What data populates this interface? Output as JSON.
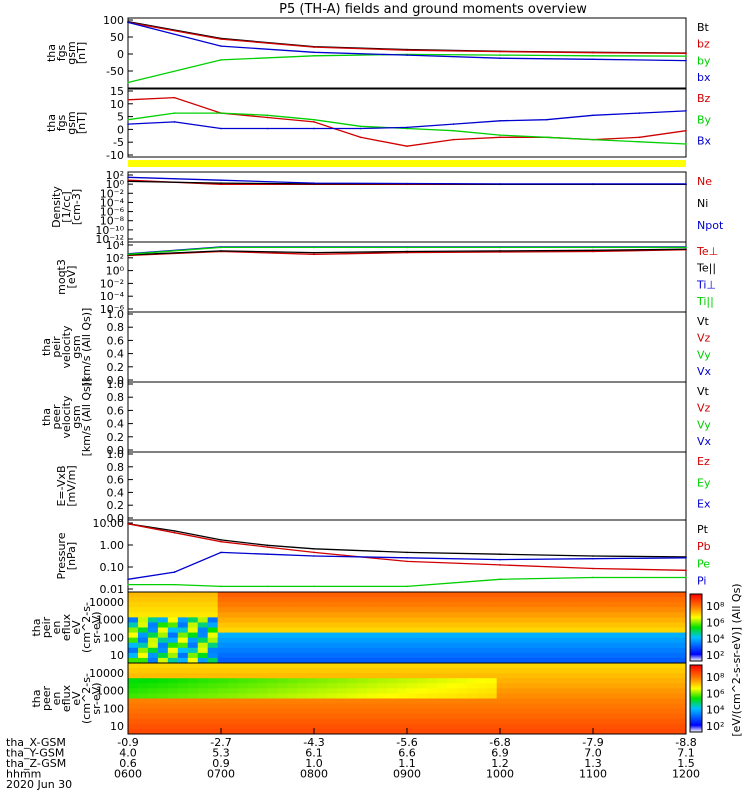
{
  "title": "P5 (TH-A) fields and ground moments overview",
  "colors": {
    "black": "#000000",
    "red": "#d00000",
    "green": "#00d000",
    "blue": "#0000d0",
    "yellow": "#ffff00"
  },
  "chart_data": [
    {
      "type": "line",
      "id": "fgs",
      "ylabel": [
        "tha",
        "fgs",
        "gsm",
        "[nT]"
      ],
      "yticks": [
        "100",
        "50",
        "0",
        "-50"
      ],
      "ylim": [
        -85,
        105
      ],
      "scale": "linear",
      "legend": [
        {
          "name": "Bt",
          "color": "black"
        },
        {
          "name": "bz",
          "color": "red"
        },
        {
          "name": "by",
          "color": "green"
        },
        {
          "name": "bx",
          "color": "blue"
        }
      ],
      "x": [
        0,
        1,
        2,
        3,
        4,
        5,
        6
      ],
      "series": [
        {
          "name": "Bt",
          "color": "black",
          "values": [
            100,
            52,
            28,
            20,
            15,
            12,
            10
          ]
        },
        {
          "name": "bz",
          "color": "red",
          "values": [
            98,
            50,
            27,
            18,
            14,
            11,
            9
          ]
        },
        {
          "name": "by",
          "color": "green",
          "values": [
            -75,
            -10,
            2,
            6,
            4,
            2,
            1
          ]
        },
        {
          "name": "bx",
          "color": "blue",
          "values": [
            98,
            30,
            12,
            4,
            -5,
            -8,
            -12
          ]
        }
      ]
    },
    {
      "type": "line",
      "id": "fgs_dsl",
      "ylabel": [
        "tha",
        "fgs",
        "gsm",
        "[nT]"
      ],
      "yticks": [
        "15",
        "10",
        "5",
        "0",
        "-5",
        "-10"
      ],
      "ylim": [
        -13,
        16
      ],
      "scale": "linear",
      "legend": [
        {
          "name": "Bz",
          "color": "red"
        },
        {
          "name": "By",
          "color": "green"
        },
        {
          "name": "Bx",
          "color": "blue"
        }
      ],
      "x": [
        0,
        0.5,
        1,
        1.5,
        2,
        2.5,
        3,
        3.5,
        4,
        4.5,
        5,
        5.5,
        6
      ],
      "series": [
        {
          "name": "Bz",
          "color": "red",
          "values": [
            12,
            13,
            6,
            4,
            2,
            -5,
            -9,
            -6,
            -5,
            -5,
            -6,
            -5,
            -2
          ]
        },
        {
          "name": "By",
          "color": "green",
          "values": [
            3,
            6,
            6,
            5,
            3,
            0,
            -1,
            -2,
            -4,
            -5,
            -6,
            -7,
            -8
          ]
        },
        {
          "name": "Bx",
          "color": "blue",
          "values": [
            1,
            2,
            -1,
            -1,
            -1,
            -1,
            -0.5,
            1,
            2.5,
            3,
            5,
            6,
            7
          ]
        }
      ]
    },
    {
      "type": "line",
      "id": "density",
      "ylabel": [
        "Density",
        "[1/cc]",
        "[cm-3]"
      ],
      "yticks": [
        "10²",
        "10⁰",
        "10⁻²",
        "10⁻⁴",
        "10⁻⁶",
        "10⁻⁸",
        "10⁻¹⁰",
        "10⁻¹²"
      ],
      "ylim": [
        -13,
        3
      ],
      "scale": "log",
      "legend": [
        {
          "name": "Ne",
          "color": "red"
        },
        {
          "name": "Ni",
          "color": "black"
        },
        {
          "name": "Npot",
          "color": "blue"
        }
      ],
      "x": [
        0,
        1,
        2,
        3,
        4,
        5,
        6
      ],
      "series": [
        {
          "name": "Ne",
          "color": "red",
          "values": [
            1.5,
            0.5,
            0.5,
            0.5,
            0.5,
            0.5,
            0.5
          ]
        },
        {
          "name": "Ni",
          "color": "black",
          "values": [
            1.2,
            0.8,
            0.6,
            0.6,
            0.5,
            0.5,
            0.5
          ]
        },
        {
          "name": "Npot",
          "color": "blue",
          "values": [
            2.2,
            1.5,
            0.8,
            0.7,
            0.6,
            0.6,
            0.6
          ]
        }
      ]
    },
    {
      "type": "line",
      "id": "temp",
      "ylabel": [
        "moqt3",
        "[eV]"
      ],
      "yticks": [
        "10⁴",
        "10²",
        "10⁰",
        "10⁻²",
        "10⁻⁴",
        "10⁻⁶"
      ],
      "ylim": [
        -7,
        4.5
      ],
      "scale": "log",
      "legend": [
        {
          "name": "Te⊥",
          "color": "red"
        },
        {
          "name": "Te||",
          "color": "black"
        },
        {
          "name": "Ti⊥",
          "color": "blue"
        },
        {
          "name": "Ti||",
          "color": "green"
        }
      ],
      "x": [
        0,
        1,
        2,
        3,
        4,
        5,
        6
      ],
      "series": [
        {
          "name": "Te⊥",
          "color": "red",
          "values": [
            2.5,
            3.2,
            2.7,
            3.0,
            3.1,
            3.2,
            3.5
          ]
        },
        {
          "name": "Te||",
          "color": "black",
          "values": [
            2.6,
            3.3,
            3.0,
            3.2,
            3.3,
            3.4,
            3.6
          ]
        },
        {
          "name": "Ti⊥",
          "color": "blue",
          "values": [
            2.8,
            4.0,
            4.0,
            4.0,
            4.0,
            4.0,
            4.0
          ]
        },
        {
          "name": "Ti||",
          "color": "green",
          "values": [
            2.7,
            3.9,
            3.9,
            3.9,
            3.9,
            3.9,
            3.9
          ]
        }
      ]
    },
    {
      "type": "line",
      "id": "peir_vel",
      "ylabel": [
        "tha",
        "peir",
        "velocity",
        "gsm",
        "[km/s (All Qs)]"
      ],
      "yticks": [
        "1.0",
        "0.8",
        "0.6",
        "0.4",
        "0.2",
        "0.0"
      ],
      "ylim": [
        0,
        1
      ],
      "scale": "linear",
      "legend": [
        {
          "name": "Vt",
          "color": "black"
        },
        {
          "name": "Vz",
          "color": "red"
        },
        {
          "name": "Vy",
          "color": "green"
        },
        {
          "name": "Vx",
          "color": "blue"
        }
      ],
      "series": []
    },
    {
      "type": "line",
      "id": "peer_vel",
      "ylabel": [
        "tha",
        "peer",
        "velocity",
        "gsm",
        "[km/s (All Qs)]"
      ],
      "yticks": [
        "1.0",
        "0.8",
        "0.6",
        "0.4",
        "0.2",
        "0.0"
      ],
      "ylim": [
        0,
        1
      ],
      "scale": "linear",
      "legend": [
        {
          "name": "Vt",
          "color": "black"
        },
        {
          "name": "Vz",
          "color": "red"
        },
        {
          "name": "Vy",
          "color": "green"
        },
        {
          "name": "Vx",
          "color": "blue"
        }
      ],
      "series": []
    },
    {
      "type": "line",
      "id": "efield",
      "ylabel": [
        "E=-VxB",
        "[mV/m]"
      ],
      "yticks": [
        "1.0",
        "0.8",
        "0.6",
        "0.4",
        "0.2",
        "0.0"
      ],
      "ylim": [
        0,
        1
      ],
      "scale": "linear",
      "legend": [
        {
          "name": "Ez",
          "color": "red"
        },
        {
          "name": "Ey",
          "color": "green"
        },
        {
          "name": "Ex",
          "color": "blue"
        }
      ],
      "series": []
    },
    {
      "type": "line",
      "id": "pressure",
      "ylabel": [
        "Pressure",
        "[nPa]"
      ],
      "yticks": [
        "10.00",
        "1.00",
        "0.10",
        "0.01"
      ],
      "ylim": [
        -2.2,
        1.6
      ],
      "scale": "log",
      "legend": [
        {
          "name": "Pt",
          "color": "black"
        },
        {
          "name": "Pb",
          "color": "red"
        },
        {
          "name": "Pe",
          "color": "green"
        },
        {
          "name": "Pi",
          "color": "blue"
        }
      ],
      "x": [
        0,
        0.5,
        1,
        1.5,
        2,
        3,
        4,
        5,
        6
      ],
      "series": [
        {
          "name": "Pt",
          "color": "black",
          "values": [
            1.5,
            1.1,
            0.6,
            0.3,
            0.1,
            -0.1,
            -0.2,
            -0.3,
            -0.35
          ]
        },
        {
          "name": "Pb",
          "color": "red",
          "values": [
            1.5,
            1.0,
            0.5,
            0.2,
            -0.1,
            -0.6,
            -0.8,
            -1.0,
            -1.1
          ]
        },
        {
          "name": "Pe",
          "color": "green",
          "values": [
            -1.9,
            -1.9,
            -2.0,
            -2.0,
            -2.0,
            -2.0,
            -1.6,
            -1.5,
            -1.5
          ]
        },
        {
          "name": "Pi",
          "color": "blue",
          "values": [
            -1.6,
            -1.2,
            -0.1,
            -0.2,
            -0.3,
            -0.4,
            -0.5,
            -0.45,
            -0.4
          ]
        }
      ]
    },
    {
      "type": "heatmap",
      "id": "peir_en",
      "ylabel": [
        "tha",
        "peir",
        "en",
        "eflux",
        "eV",
        "(cm^2-s-",
        "sr-eV)"
      ],
      "yticks": [
        "10000",
        "1000",
        "100",
        "10"
      ]
    },
    {
      "type": "heatmap",
      "id": "peer_en",
      "ylabel": [
        "tha",
        "peer",
        "en",
        "eflux",
        "eV",
        "(cm^2-s-",
        "sr-eV)"
      ],
      "yticks": [
        "10000",
        "1000",
        "100",
        "10"
      ]
    }
  ],
  "colorbar": {
    "label": "[eV/(cm^2-s-sr-eV)] (All Qs)",
    "ticks": [
      "10⁸",
      "10⁶",
      "10⁴",
      "10²"
    ]
  },
  "xaxis": {
    "rows": [
      {
        "label": "tha_X-GSM",
        "values": [
          "-0.9",
          "-2.7",
          "-4.3",
          "-5.6",
          "-6.8",
          "-7.9",
          "-8.8"
        ]
      },
      {
        "label": "tha_Y-GSM",
        "values": [
          "4.0",
          "5.3",
          "6.1",
          "6.6",
          "6.9",
          "7.0",
          "7.1"
        ]
      },
      {
        "label": "tha_Z-GSM",
        "values": [
          "0.6",
          "0.9",
          "1.0",
          "1.1",
          "1.2",
          "1.3",
          "1.5"
        ]
      },
      {
        "label": "hhmm",
        "values": [
          "0600",
          "0700",
          "0800",
          "0900",
          "1000",
          "1100",
          "1200"
        ]
      }
    ],
    "date": "2020 Jun 30"
  }
}
